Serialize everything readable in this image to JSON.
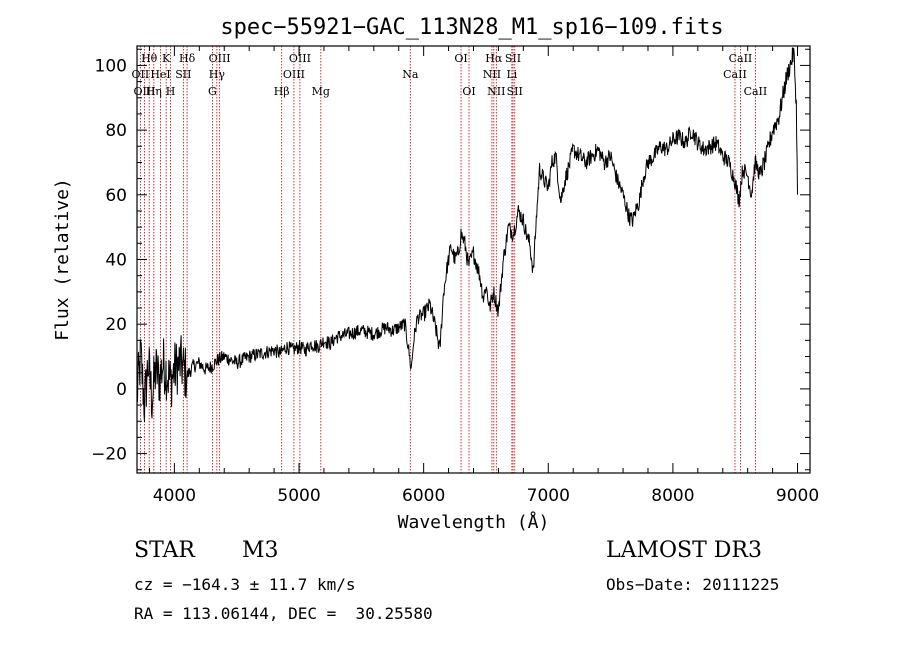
{
  "chart_data": {
    "type": "line",
    "title": "spec−55921−GAC_113N28_M1_sp16−109.fits",
    "xlabel": "Wavelength (Å)",
    "ylabel": "Flux (relative)",
    "xlim": [
      3700,
      9100
    ],
    "ylim": [
      -26,
      106
    ],
    "xticks": [
      4000,
      5000,
      6000,
      7000,
      8000,
      9000
    ],
    "yticks": [
      -20,
      0,
      20,
      40,
      60,
      80,
      100
    ],
    "series": [
      {
        "name": "flux",
        "x": [
          3700,
          3730,
          3760,
          3790,
          3820,
          3850,
          3880,
          3910,
          3940,
          3970,
          4000,
          4050,
          4100,
          4150,
          4200,
          4250,
          4300,
          4350,
          4400,
          4450,
          4500,
          4600,
          4700,
          4800,
          4850,
          4900,
          4950,
          5000,
          5050,
          5100,
          5150,
          5200,
          5250,
          5300,
          5400,
          5500,
          5600,
          5700,
          5750,
          5800,
          5850,
          5880,
          5900,
          5920,
          5950,
          6000,
          6050,
          6100,
          6130,
          6160,
          6190,
          6220,
          6250,
          6280,
          6300,
          6330,
          6360,
          6400,
          6450,
          6480,
          6500,
          6530,
          6560,
          6600,
          6640,
          6680,
          6720,
          6760,
          6800,
          6830,
          6850,
          6880,
          6900,
          6930,
          6960,
          7000,
          7030,
          7060,
          7100,
          7130,
          7160,
          7200,
          7250,
          7300,
          7350,
          7400,
          7450,
          7500,
          7550,
          7600,
          7650,
          7680,
          7700,
          7730,
          7760,
          7800,
          7850,
          7900,
          7950,
          8000,
          8050,
          8100,
          8150,
          8200,
          8250,
          8300,
          8350,
          8400,
          8450,
          8500,
          8530,
          8560,
          8600,
          8630,
          8660,
          8700,
          8750,
          8800,
          8850,
          8880,
          8910,
          8940,
          8970,
          8990,
          9000
        ],
        "y": [
          -2,
          10,
          -5,
          8,
          -3,
          6,
          3,
          8,
          5,
          2,
          6,
          8,
          4,
          7,
          8,
          6,
          7,
          9,
          10,
          9,
          8,
          10,
          11,
          12,
          11,
          13,
          12,
          13,
          12,
          14,
          13,
          15,
          14,
          16,
          17,
          18,
          17,
          19,
          18,
          19,
          20,
          12,
          6,
          15,
          22,
          23,
          26,
          18,
          12,
          30,
          38,
          44,
          40,
          42,
          48,
          45,
          38,
          42,
          35,
          28,
          32,
          25,
          30,
          24,
          40,
          50,
          48,
          55,
          52,
          47,
          45,
          36,
          50,
          68,
          65,
          62,
          70,
          72,
          58,
          64,
          68,
          74,
          72,
          70,
          72,
          74,
          70,
          72,
          65,
          60,
          53,
          52,
          55,
          58,
          65,
          70,
          72,
          75,
          74,
          77,
          78,
          76,
          80,
          76,
          74,
          75,
          76,
          72,
          70,
          64,
          58,
          68,
          66,
          60,
          70,
          66,
          72,
          80,
          84,
          90,
          96,
          100,
          104,
          88,
          60
        ],
        "units": "relative flux"
      }
    ],
    "annotations": {
      "spectral_lines": [
        {
          "label": "Hθ",
          "x": 3798,
          "row": 0
        },
        {
          "label": "K",
          "x": 3934,
          "row": 0
        },
        {
          "label": "Hδ",
          "x": 4102,
          "row": 0
        },
        {
          "label": "OIII",
          "x": 4363,
          "row": 0
        },
        {
          "label": "OIII",
          "x": 5007,
          "row": 0
        },
        {
          "label": "OI",
          "x": 6300,
          "row": 0
        },
        {
          "label": "Hα",
          "x": 6563,
          "row": 0
        },
        {
          "label": "SII",
          "x": 6717,
          "row": 0
        },
        {
          "label": "CaII",
          "x": 8542,
          "row": 0
        },
        {
          "label": "OII",
          "x": 3727,
          "row": 1
        },
        {
          "label": "HeI",
          "x": 3889,
          "row": 1
        },
        {
          "label": "SII",
          "x": 4072,
          "row": 1
        },
        {
          "label": "Hγ",
          "x": 4341,
          "row": 1
        },
        {
          "label": "OIII",
          "x": 4959,
          "row": 1
        },
        {
          "label": "Na",
          "x": 5893,
          "row": 1
        },
        {
          "label": "NII",
          "x": 6548,
          "row": 1
        },
        {
          "label": "Li",
          "x": 6708,
          "row": 1
        },
        {
          "label": "CaII",
          "x": 8498,
          "row": 1
        },
        {
          "label": "OIII",
          "x": 3760,
          "row": 2
        },
        {
          "label": "Hη",
          "x": 3835,
          "row": 2
        },
        {
          "label": "H",
          "x": 3969,
          "row": 2
        },
        {
          "label": "G",
          "x": 4305,
          "row": 2
        },
        {
          "label": "Hβ",
          "x": 4861,
          "row": 2
        },
        {
          "label": "Mg",
          "x": 5175,
          "row": 2
        },
        {
          "label": "OI",
          "x": 6364,
          "row": 2
        },
        {
          "label": "NII",
          "x": 6583,
          "row": 2
        },
        {
          "label": "SII",
          "x": 6731,
          "row": 2
        },
        {
          "label": "CaII",
          "x": 8662,
          "row": 2
        }
      ]
    }
  },
  "info": {
    "class": "STAR",
    "subclass": "M3",
    "survey": "LAMOST DR3",
    "cz": "cz = −164.3 ± 11.7 km/s",
    "obsdate": "Obs−Date: 20111225",
    "coords": "RA = 113.06144, DEC =  30.25580"
  },
  "colors": {
    "spectrum": "#000000",
    "line_markers": "#c00000",
    "axes": "#000000"
  }
}
